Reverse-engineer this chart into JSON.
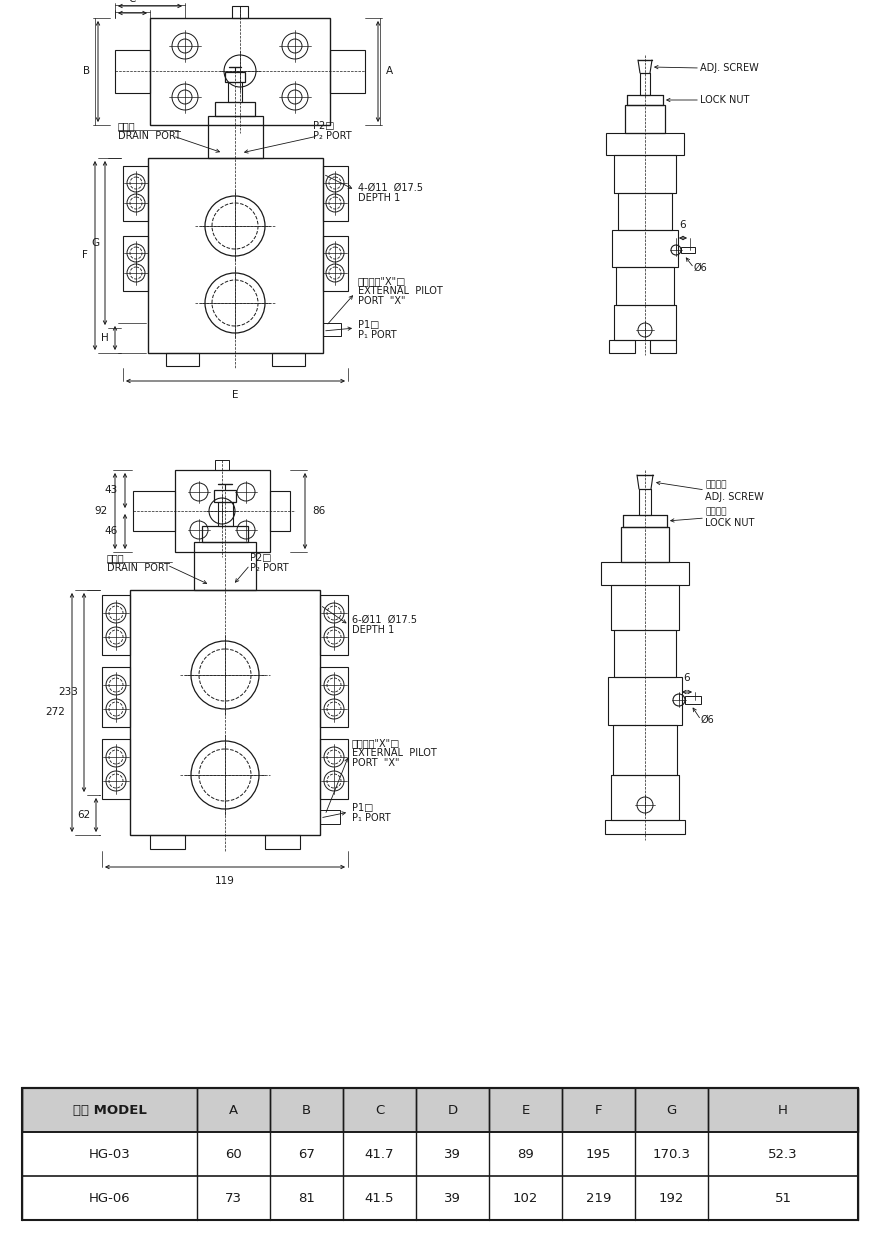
{
  "bg_color": "#ffffff",
  "line_color": "#1a1a1a",
  "table_header_bg": "#cccccc",
  "table_data": {
    "headers": [
      "型式 MODEL",
      "A",
      "B",
      "C",
      "D",
      "E",
      "F",
      "G",
      "H"
    ],
    "rows": [
      [
        "HG-03",
        "60",
        "67",
        "41.7",
        "39",
        "89",
        "195",
        "170.3",
        "52.3"
      ],
      [
        "HG-06",
        "73",
        "81",
        "41.5",
        "39",
        "102",
        "219",
        "192",
        "51"
      ]
    ]
  },
  "font_size_label": 7.5,
  "font_size_dim": 7.5,
  "font_size_table": 9.5,
  "font_size_annot": 7.0
}
